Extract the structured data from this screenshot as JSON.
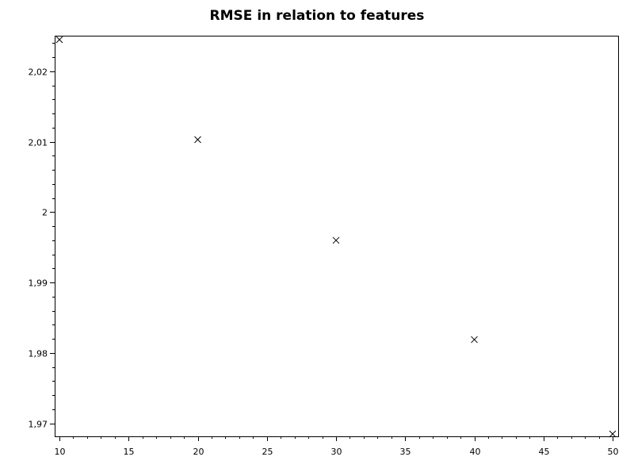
{
  "chart_data": {
    "type": "scatter",
    "title": "RMSE in relation to features",
    "xlabel": "",
    "ylabel": "",
    "marker": "x",
    "marker_color": "#000000",
    "grid": false,
    "xlim": [
      10,
      50
    ],
    "ylim": [
      1.9685,
      2.0245
    ],
    "x_ticks": [
      10,
      15,
      20,
      25,
      30,
      35,
      40,
      45,
      50
    ],
    "y_ticks": [
      1.97,
      1.98,
      1.99,
      2,
      2.01,
      2.02
    ],
    "x_tick_labels": [
      "10",
      "15",
      "20",
      "25",
      "30",
      "35",
      "40",
      "45",
      "50"
    ],
    "y_tick_labels": [
      "1,97",
      "1,98",
      "1,99",
      "2",
      "2,01",
      "2,02"
    ],
    "series": [
      {
        "x": [
          10,
          20,
          30,
          40,
          50
        ],
        "y": [
          2.0245,
          2.0103,
          1.996,
          1.9819,
          1.9685
        ]
      }
    ]
  }
}
